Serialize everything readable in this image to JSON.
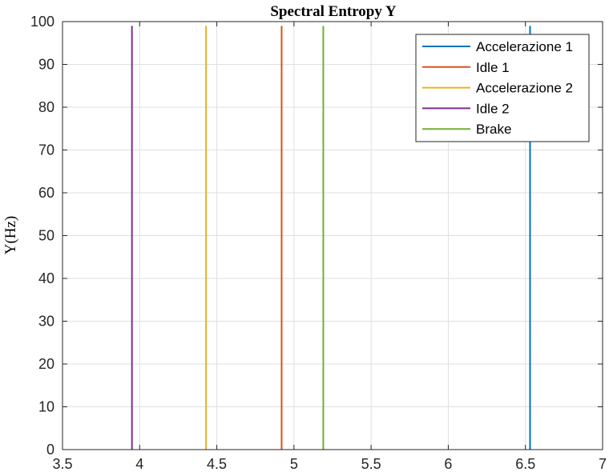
{
  "chart_data": {
    "type": "line",
    "title": "Spectral Entropy Y",
    "xlabel": "",
    "ylabel": "Y(Hz)",
    "xlim": [
      3.5,
      7
    ],
    "ylim": [
      0,
      100
    ],
    "xticks": [
      "3.5",
      "4",
      "4.5",
      "5",
      "5.5",
      "6",
      "6.5",
      "7"
    ],
    "yticks": [
      "0",
      "10",
      "20",
      "30",
      "40",
      "50",
      "60",
      "70",
      "80",
      "90",
      "100"
    ],
    "grid": true,
    "legend_position": "top-right",
    "series": [
      {
        "name": "Accelerazione 1",
        "color": "#0072BD",
        "x": [
          6.53,
          6.53
        ],
        "y": [
          0,
          99
        ]
      },
      {
        "name": "Idle 1",
        "color": "#D95319",
        "x": [
          4.92,
          4.92
        ],
        "y": [
          0,
          99
        ]
      },
      {
        "name": "Accelerazione 2",
        "color": "#EDB120",
        "x": [
          4.43,
          4.43
        ],
        "y": [
          0,
          99
        ]
      },
      {
        "name": "Idle 2",
        "color": "#7E2F8E",
        "x": [
          3.95,
          3.95
        ],
        "y": [
          0,
          99
        ]
      },
      {
        "name": "Brake",
        "color": "#77AC30",
        "x": [
          5.19,
          5.19
        ],
        "y": [
          0,
          99
        ]
      }
    ]
  }
}
